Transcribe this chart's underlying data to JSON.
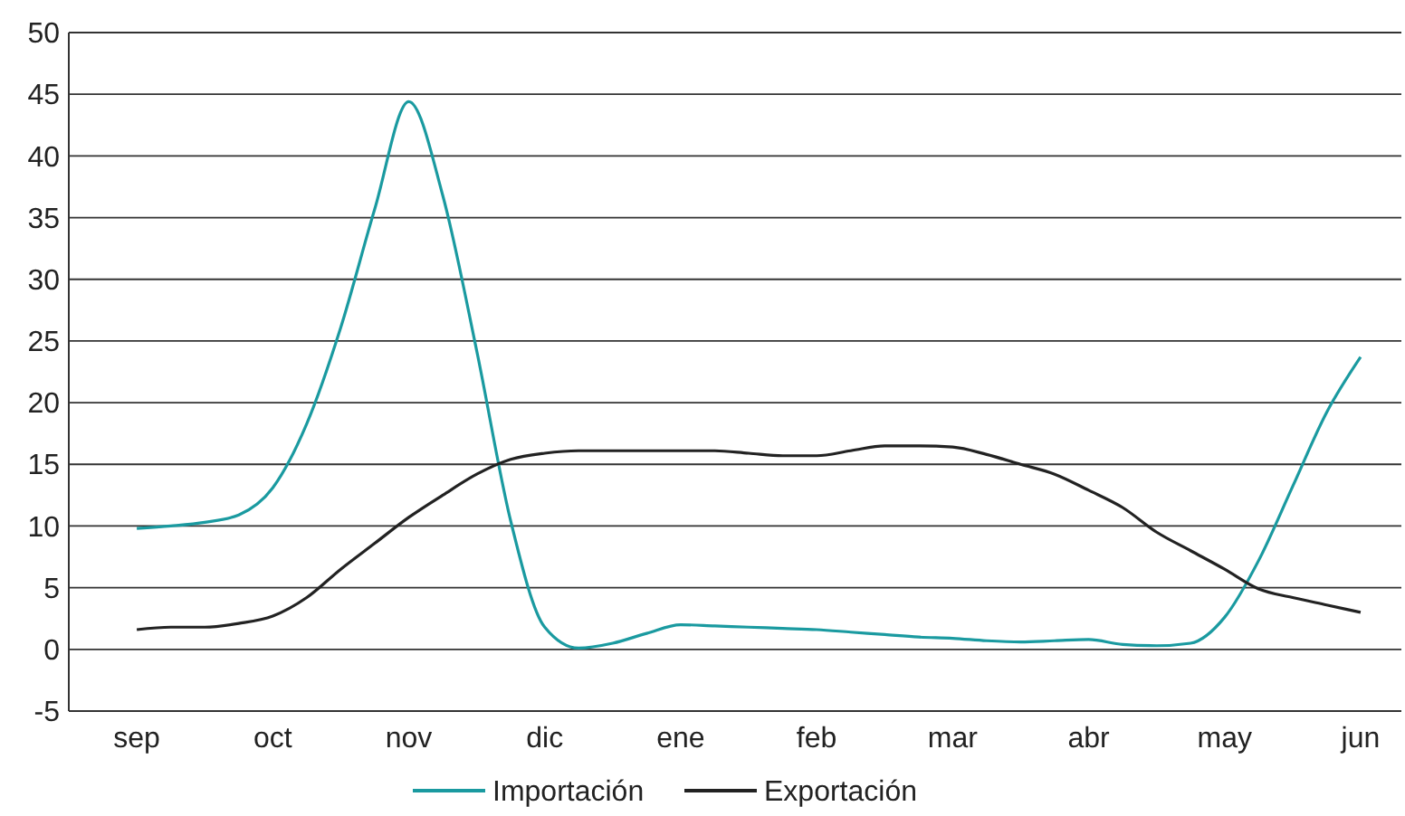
{
  "chart_data": {
    "type": "line",
    "legend": "bottom",
    "grid": "y",
    "marker": "none",
    "line_style": "solid",
    "categories": [
      "sep",
      null,
      null,
      null,
      "oct",
      null,
      null,
      null,
      "nov",
      null,
      null,
      null,
      "dic",
      null,
      null,
      null,
      "ene",
      null,
      null,
      null,
      "feb",
      null,
      null,
      null,
      "mar",
      null,
      null,
      null,
      "abr",
      null,
      null,
      null,
      "may",
      null,
      null,
      null,
      "jun"
    ],
    "ylim": [
      -5,
      50
    ],
    "yticks": [
      -5,
      0,
      5,
      10,
      15,
      20,
      25,
      30,
      35,
      40,
      45,
      50
    ],
    "series": [
      {
        "name": "Importación",
        "color": "#1a9aa0",
        "values": [
          9.8,
          10,
          10.3,
          10.9,
          13.1,
          18.3,
          26.1,
          35.7,
          44.4,
          36.8,
          24.2,
          10.4,
          1.8,
          0.1,
          0.5,
          1.3,
          2,
          1.9,
          1.8,
          1.7,
          1.6,
          1.4,
          1.2,
          1,
          0.9,
          0.7,
          0.6,
          0.7,
          0.8,
          0.4,
          0.3,
          0.5,
          2.6,
          7.2,
          13.2,
          19.2,
          23.7
        ]
      },
      {
        "name": "Exportación",
        "color": "#222222",
        "values": [
          1.6,
          1.8,
          1.8,
          2.1,
          2.7,
          4.2,
          6.5,
          8.6,
          10.7,
          12.5,
          14.2,
          15.4,
          15.9,
          16.1,
          16.1,
          16.1,
          16.1,
          16.1,
          15.9,
          15.7,
          15.7,
          16.1,
          16.5,
          16.5,
          16.4,
          15.8,
          15,
          14.2,
          12.9,
          11.5,
          9.5,
          8,
          6.5,
          4.9,
          4.2,
          3.6,
          3
        ]
      }
    ]
  }
}
